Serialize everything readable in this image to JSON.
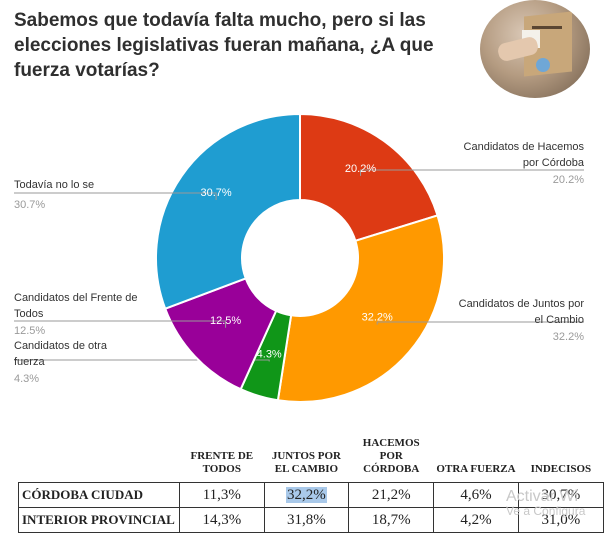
{
  "title": "Sabemos que todavía falta mucho, pero si las elecciones legislativas fueran mañana, ¿A que fuerza votarías?",
  "chart_data": {
    "type": "pie",
    "variant": "donut",
    "title": "Sabemos que todavía falta mucho, pero si las elecciones legislativas fueran mañana, ¿A que fuerza votarías?",
    "categories": [
      "Candidatos de Hacemos por Córdoba",
      "Candidatos de Juntos por el Cambio",
      "Candidatos de otra fuerza",
      "Candidatos del Frente de Todos",
      "Todavía no lo se"
    ],
    "values": [
      20.2,
      32.2,
      4.3,
      12.5,
      30.7
    ],
    "labels": [
      "20.2%",
      "32.2%",
      "4.3%",
      "12.5%",
      "30.7%"
    ],
    "colors": [
      "#dd3a14",
      "#ff9900",
      "#109618",
      "#990099",
      "#1f9dd1"
    ],
    "outside_labels": [
      {
        "lines": [
          "Candidatos de Hacemos",
          "por Córdoba"
        ],
        "pct": "20.2%"
      },
      {
        "lines": [
          "Candidatos de Juntos por",
          "el Cambio"
        ],
        "pct": "32.2%"
      },
      {
        "lines": [
          "Candidatos de otra",
          "fuerza"
        ],
        "pct": "4.3%"
      },
      {
        "lines": [
          "Candidatos del Frente de",
          "Todos"
        ],
        "pct": "12.5%"
      },
      {
        "lines": [
          "Todavía no lo se"
        ],
        "pct": "30.7%"
      }
    ]
  },
  "table": {
    "headers": [
      "FRENTE DE TODOS",
      "JUNTOS POR EL CAMBIO",
      "HACEMOS POR CÓRDOBA",
      "OTRA FUERZA",
      "INDECISOS"
    ],
    "rows": [
      {
        "label": "CÓRDOBA CIUDAD",
        "values": [
          "11,3%",
          "32,2%",
          "21,2%",
          "4,6%",
          "30,7%"
        ]
      },
      {
        "label": "INTERIOR PROVINCIAL",
        "values": [
          "14,3%",
          "31,8%",
          "18,7%",
          "4,2%",
          "31,0%"
        ]
      }
    ],
    "highlight_color": "#a9c9ea"
  },
  "watermark": {
    "line1": "Activar Wi",
    "line2": "Ve a Configura"
  }
}
